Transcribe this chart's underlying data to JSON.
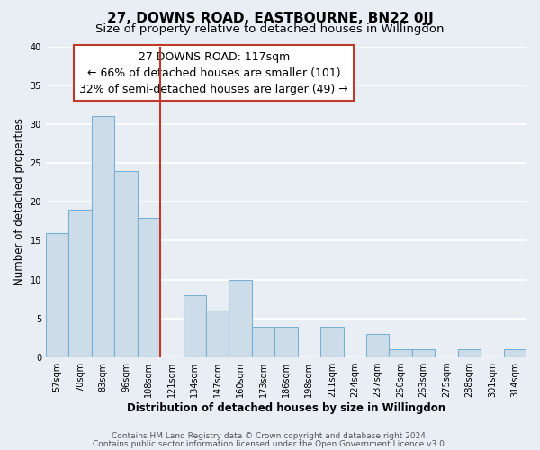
{
  "title": "27, DOWNS ROAD, EASTBOURNE, BN22 0JJ",
  "subtitle": "Size of property relative to detached houses in Willingdon",
  "xlabel": "Distribution of detached houses by size in Willingdon",
  "ylabel": "Number of detached properties",
  "categories": [
    "57sqm",
    "70sqm",
    "83sqm",
    "96sqm",
    "108sqm",
    "121sqm",
    "134sqm",
    "147sqm",
    "160sqm",
    "173sqm",
    "186sqm",
    "198sqm",
    "211sqm",
    "224sqm",
    "237sqm",
    "250sqm",
    "263sqm",
    "275sqm",
    "288sqm",
    "301sqm",
    "314sqm"
  ],
  "values": [
    16,
    19,
    31,
    24,
    18,
    0,
    8,
    6,
    10,
    4,
    4,
    0,
    4,
    0,
    3,
    1,
    1,
    0,
    1,
    0,
    1
  ],
  "bar_color": "#ccdde9",
  "bar_edge_color": "#7bafd4",
  "vline_x": 4.5,
  "vline_color": "#c0392b",
  "annotation_line1": "27 DOWNS ROAD: 117sqm",
  "annotation_line2": "← 66% of detached houses are smaller (101)",
  "annotation_line3": "32% of semi-detached houses are larger (49) →",
  "annotation_box_color": "#ffffff",
  "annotation_box_edge": "#c0392b",
  "ylim": [
    0,
    40
  ],
  "yticks": [
    0,
    5,
    10,
    15,
    20,
    25,
    30,
    35,
    40
  ],
  "footer_line1": "Contains HM Land Registry data © Crown copyright and database right 2024.",
  "footer_line2": "Contains public sector information licensed under the Open Government Licence v3.0.",
  "background_color": "#e8eef4",
  "grid_color": "#ffffff",
  "title_fontsize": 11,
  "subtitle_fontsize": 9.5,
  "axis_label_fontsize": 8.5,
  "tick_fontsize": 7,
  "annotation_fontsize": 9,
  "footer_fontsize": 6.5
}
